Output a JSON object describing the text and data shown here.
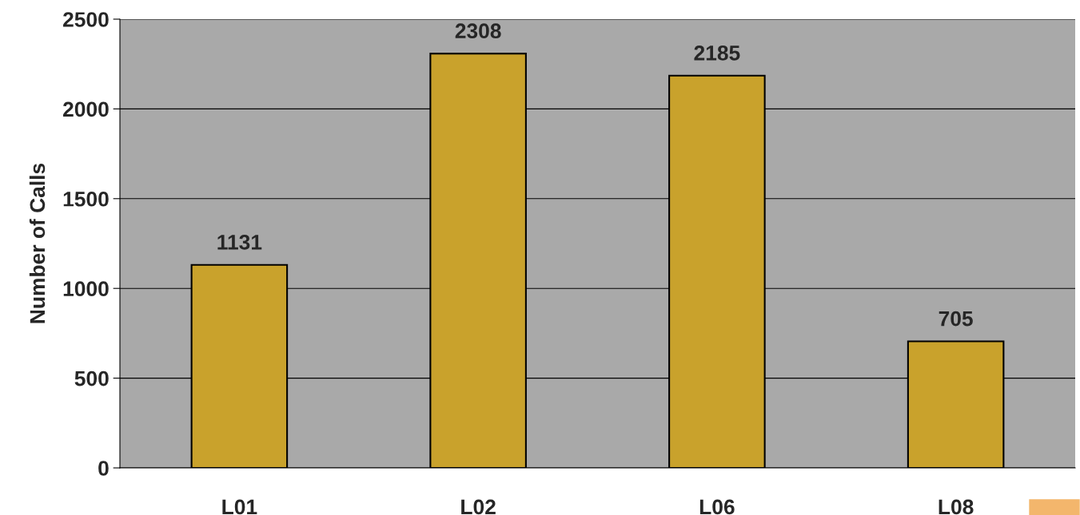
{
  "chart_data": {
    "type": "bar",
    "ylabel": "Number of Calls",
    "categories": [
      "L01",
      "L02",
      "L06",
      "L08"
    ],
    "values": [
      1131,
      2308,
      2185,
      705
    ],
    "color": "#c9a22c",
    "ylim": [
      0,
      2500
    ],
    "yticks": [
      0,
      500,
      1000,
      1500,
      2000,
      2500
    ],
    "grid": "y",
    "data_labels": true
  }
}
